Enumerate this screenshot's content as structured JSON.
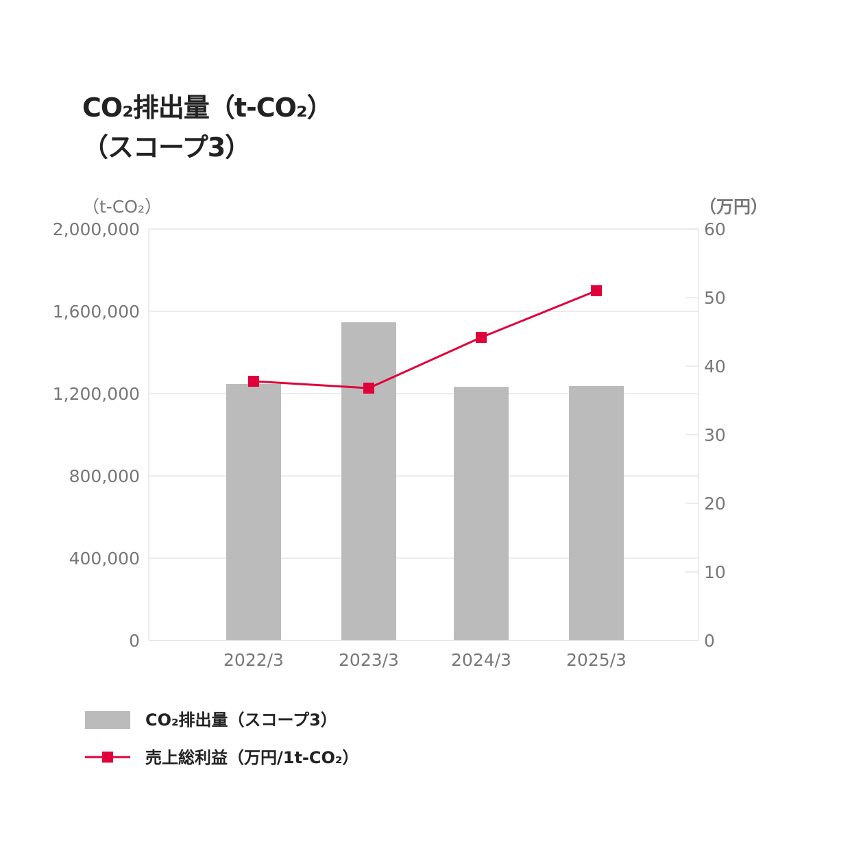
{
  "chart_data": {
    "type": "bar+line",
    "title_line1": "CO₂排出量（t-CO₂）",
    "title_line2": "（スコープ3）",
    "categories": [
      "2022/3",
      "2023/3",
      "2024/3",
      "2025/3"
    ],
    "series": [
      {
        "name": "CO₂排出量（スコープ3）",
        "type": "bar",
        "axis": "left",
        "color": "#bbbbbb",
        "values": [
          1247000,
          1547000,
          1233000,
          1237000
        ]
      },
      {
        "name": "売上総利益（万円/1t-CO₂）",
        "type": "line",
        "axis": "right",
        "color": "#e0003a",
        "values": [
          37.8,
          36.8,
          44.2,
          51.0
        ]
      }
    ],
    "left_axis": {
      "label": "（t-CO₂）",
      "ylim": [
        0,
        2000000
      ],
      "ticks": [
        0,
        400000,
        800000,
        1200000,
        1600000,
        2000000
      ],
      "tick_labels": [
        "0",
        "400,000",
        "800,000",
        "1,200,000",
        "1,600,000",
        "2,000,000"
      ]
    },
    "right_axis": {
      "label": "（万円）",
      "ylim": [
        0,
        60
      ],
      "ticks": [
        0,
        10,
        20,
        30,
        40,
        50,
        60
      ],
      "tick_labels": [
        "0",
        "10",
        "20",
        "30",
        "40",
        "50",
        "60"
      ]
    },
    "grid": true,
    "legend": "bottom-left"
  }
}
